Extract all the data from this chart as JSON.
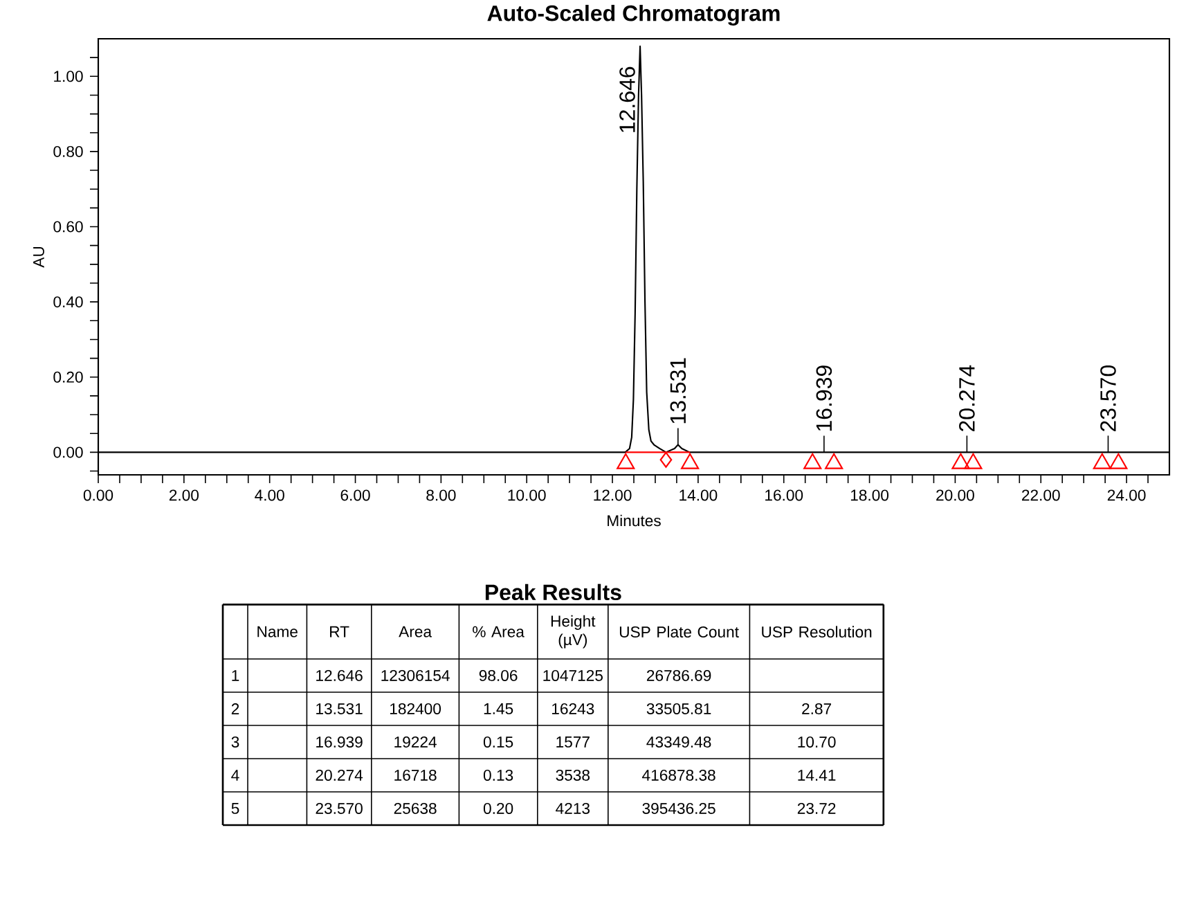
{
  "chart_data": [
    {
      "type": "line",
      "title": "Auto-Scaled Chromatogram",
      "xlabel": "Minutes",
      "ylabel": "AU",
      "xlim": [
        0,
        25
      ],
      "ylim": [
        -0.06,
        1.1
      ],
      "xticks": [
        {
          "value": 0,
          "label": "0.00"
        },
        {
          "value": 0.5,
          "label": null
        },
        {
          "value": 1,
          "label": null
        },
        {
          "value": 1.5,
          "label": null
        },
        {
          "value": 2,
          "label": "2.00"
        },
        {
          "value": 2.5,
          "label": null
        },
        {
          "value": 3,
          "label": null
        },
        {
          "value": 3.5,
          "label": null
        },
        {
          "value": 4,
          "label": "4.00"
        },
        {
          "value": 4.5,
          "label": null
        },
        {
          "value": 5,
          "label": null
        },
        {
          "value": 5.5,
          "label": null
        },
        {
          "value": 6,
          "label": "6.00"
        },
        {
          "value": 6.5,
          "label": null
        },
        {
          "value": 7,
          "label": null
        },
        {
          "value": 7.5,
          "label": null
        },
        {
          "value": 8,
          "label": "8.00"
        },
        {
          "value": 8.5,
          "label": null
        },
        {
          "value": 9,
          "label": null
        },
        {
          "value": 9.5,
          "label": null
        },
        {
          "value": 10,
          "label": "10.00"
        },
        {
          "value": 10.5,
          "label": null
        },
        {
          "value": 11,
          "label": null
        },
        {
          "value": 11.5,
          "label": null
        },
        {
          "value": 12,
          "label": "12.00"
        },
        {
          "value": 12.5,
          "label": null
        },
        {
          "value": 13,
          "label": null
        },
        {
          "value": 13.5,
          "label": null
        },
        {
          "value": 14,
          "label": "14.00"
        },
        {
          "value": 14.5,
          "label": null
        },
        {
          "value": 15,
          "label": null
        },
        {
          "value": 15.5,
          "label": null
        },
        {
          "value": 16,
          "label": "16.00"
        },
        {
          "value": 16.5,
          "label": null
        },
        {
          "value": 17,
          "label": null
        },
        {
          "value": 17.5,
          "label": null
        },
        {
          "value": 18,
          "label": "18.00"
        },
        {
          "value": 18.5,
          "label": null
        },
        {
          "value": 19,
          "label": null
        },
        {
          "value": 19.5,
          "label": null
        },
        {
          "value": 20,
          "label": "20.00"
        },
        {
          "value": 20.5,
          "label": null
        },
        {
          "value": 21,
          "label": null
        },
        {
          "value": 21.5,
          "label": null
        },
        {
          "value": 22,
          "label": "22.00"
        },
        {
          "value": 22.5,
          "label": null
        },
        {
          "value": 23,
          "label": null
        },
        {
          "value": 23.5,
          "label": null
        },
        {
          "value": 24,
          "label": "24.00"
        },
        {
          "value": 24.5,
          "label": null
        }
      ],
      "yticks": [
        {
          "value": -0.05,
          "label": null
        },
        {
          "value": 0,
          "label": "0.00"
        },
        {
          "value": 0.05,
          "label": null
        },
        {
          "value": 0.1,
          "label": null
        },
        {
          "value": 0.15,
          "label": null
        },
        {
          "value": 0.2,
          "label": "0.20"
        },
        {
          "value": 0.25,
          "label": null
        },
        {
          "value": 0.3,
          "label": null
        },
        {
          "value": 0.35,
          "label": null
        },
        {
          "value": 0.4,
          "label": "0.40"
        },
        {
          "value": 0.45,
          "label": null
        },
        {
          "value": 0.5,
          "label": null
        },
        {
          "value": 0.55,
          "label": null
        },
        {
          "value": 0.6,
          "label": "0.60"
        },
        {
          "value": 0.65,
          "label": null
        },
        {
          "value": 0.7,
          "label": null
        },
        {
          "value": 0.75,
          "label": null
        },
        {
          "value": 0.8,
          "label": "0.80"
        },
        {
          "value": 0.85,
          "label": null
        },
        {
          "value": 0.9,
          "label": null
        },
        {
          "value": 0.95,
          "label": null
        },
        {
          "value": 1,
          "label": "1.00"
        },
        {
          "value": 1.05,
          "label": null
        }
      ],
      "series": [
        {
          "type": "line",
          "color": "#000000",
          "x": [
            0,
            12.3,
            12.4,
            12.45,
            12.49,
            12.53,
            12.57,
            12.61,
            12.646,
            12.68,
            12.72,
            12.76,
            12.8,
            12.85,
            12.9,
            12.97,
            13.1,
            13.25,
            13.45,
            13.531,
            13.62,
            13.8,
            25
          ],
          "values": [
            0,
            0,
            0.01,
            0.04,
            0.14,
            0.37,
            0.7,
            0.95,
            1.08,
            0.95,
            0.72,
            0.4,
            0.16,
            0.06,
            0.03,
            0.02,
            0.01,
            0,
            0.01,
            0.02,
            0.01,
            0,
            0
          ]
        },
        {
          "type": "line",
          "color": "#ff0000",
          "x": [
            12.31,
            13.81
          ],
          "values": [
            0,
            0
          ]
        },
        {
          "type": "scatter",
          "marker": "triangle",
          "color": "#ff0000",
          "x": [
            12.31,
            13.81,
            16.67,
            17.17,
            20.13,
            20.42,
            23.43,
            23.81
          ],
          "values": [
            -0.03,
            -0.03,
            -0.03,
            -0.03,
            -0.03,
            -0.03,
            -0.03,
            -0.03
          ]
        },
        {
          "type": "scatter",
          "marker": "diamond",
          "color": "#ff0000",
          "x": [
            13.25
          ],
          "values": [
            -0.02
          ]
        }
      ],
      "annotations": [
        {
          "text": "12.646",
          "x": 12.646,
          "y": 1.08
        },
        {
          "text": "13.531",
          "x": 13.531,
          "y": 0.02
        },
        {
          "text": "16.939",
          "x": 16.939,
          "y": 0
        },
        {
          "text": "20.274",
          "x": 20.274,
          "y": 0
        },
        {
          "text": "23.570",
          "x": 23.57,
          "y": 0
        }
      ]
    },
    {
      "type": "heatmap",
      "title": "Peak Results",
      "categories": [
        "Name",
        "RT",
        "Area",
        "% Area",
        "Height (µV)",
        "USP Plate Count",
        "USP Resolution"
      ],
      "y_categories": [
        "1",
        "2",
        "3",
        "4",
        "5"
      ],
      "cells": [
        [
          null,
          null,
          null,
          null,
          null,
          null,
          null
        ],
        [
          null,
          null,
          null,
          null,
          null,
          null,
          null
        ],
        [
          null,
          null,
          null,
          null,
          null,
          null,
          null
        ],
        [
          null,
          null,
          null,
          null,
          null,
          null,
          null
        ],
        [
          null,
          null,
          null,
          null,
          null,
          null,
          null
        ]
      ],
      "cell_labels": [
        [
          null,
          "12.646",
          "12306154",
          "98.06",
          "1047125",
          "26786.69",
          null
        ],
        [
          null,
          "13.531",
          "182400",
          "1.45",
          "16243",
          "33505.81",
          "2.87"
        ],
        [
          null,
          "16.939",
          "19224",
          "0.15",
          "1577",
          "43349.48",
          "10.70"
        ],
        [
          null,
          "20.274",
          "16718",
          "0.13",
          "3538",
          "416878.38",
          "14.41"
        ],
        [
          null,
          "23.570",
          "25638",
          "0.20",
          "4213",
          "395436.25",
          "23.72"
        ]
      ]
    }
  ]
}
